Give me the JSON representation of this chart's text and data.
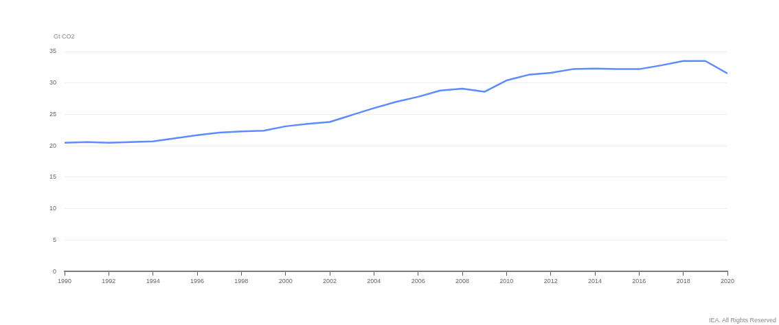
{
  "chart_data": {
    "type": "line",
    "ylabel": "Gt CO2",
    "x": [
      1990,
      1991,
      1992,
      1993,
      1994,
      1995,
      1996,
      1997,
      1998,
      1999,
      2000,
      2001,
      2002,
      2003,
      2004,
      2005,
      2006,
      2007,
      2008,
      2009,
      2010,
      2011,
      2012,
      2013,
      2014,
      2015,
      2016,
      2017,
      2018,
      2019,
      2020
    ],
    "series": [
      {
        "color": "#5b8cff",
        "values": [
          20.5,
          20.6,
          20.5,
          20.6,
          20.7,
          21.2,
          21.7,
          22.1,
          22.3,
          22.4,
          23.1,
          23.5,
          23.8,
          24.9,
          26.0,
          27.0,
          27.8,
          28.8,
          29.1,
          28.6,
          30.4,
          31.3,
          31.6,
          32.2,
          32.3,
          32.2,
          32.2,
          32.8,
          33.5,
          33.5,
          31.5
        ]
      }
    ],
    "xlim": [
      1990,
      2020
    ],
    "xticks": [
      1990,
      1992,
      1994,
      1996,
      1998,
      2000,
      2002,
      2004,
      2006,
      2008,
      2010,
      2012,
      2014,
      2016,
      2018,
      2020
    ],
    "ylim": [
      0,
      35
    ],
    "yticks": [
      0,
      5,
      10,
      15,
      20,
      25,
      30,
      35
    ],
    "grid": "y",
    "legend": false,
    "marker": "none",
    "line_style": "solid",
    "annotations": [
      "IEA. All Rights Reserved"
    ]
  }
}
